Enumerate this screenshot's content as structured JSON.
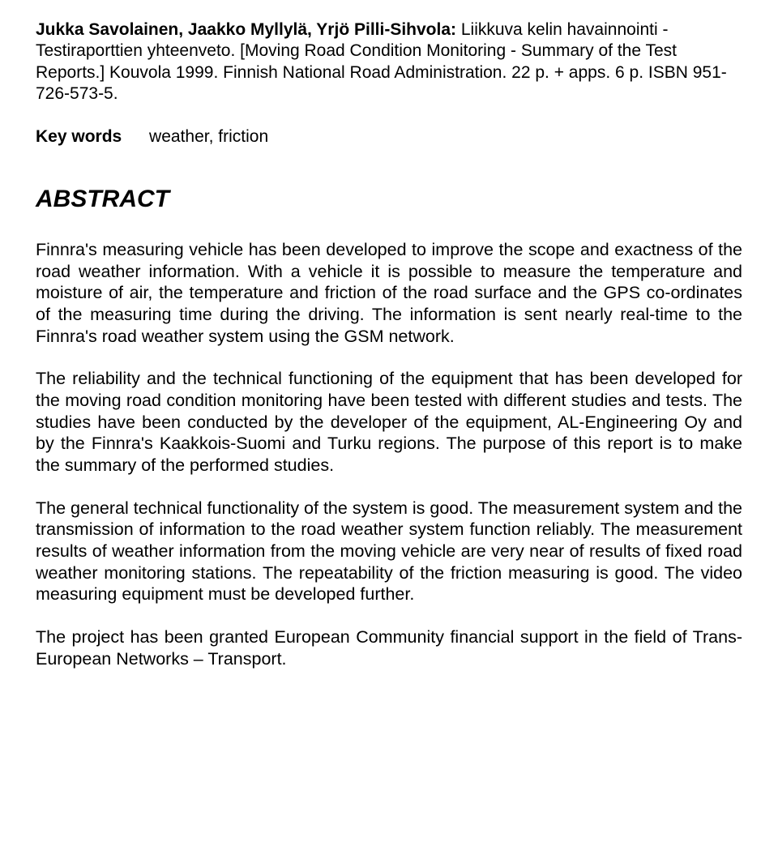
{
  "citation": {
    "authors": "Jukka Savolainen, Jaakko Myllylä, Yrjö Pilli-Sihvola:",
    "rest": " Liikkuva kelin havainnointi - Testiraporttien yhteenveto. [Moving Road Condition Monitoring - Summary of the Test Reports.] Kouvola 1999. Finnish National Road Administration. 22 p. + apps. 6 p. ISBN 951-726-573-5."
  },
  "keywords": {
    "label": "Key words",
    "value": "weather, friction"
  },
  "abstract_title": "ABSTRACT",
  "paragraphs": [
    "Finnra's measuring vehicle has been developed to improve the scope and exactness of the road weather information. With a vehicle it is possible to measure the temperature and moisture of air, the temperature and friction of the road surface and the GPS co-ordinates of the measuring time during the driving. The information is sent nearly real-time to the Finnra's road weather system using the GSM network.",
    "The reliability and the technical functioning of the equipment that has been developed for the moving road condition monitoring have been tested with different studies and tests. The studies have been conducted by the developer of the equipment, AL-Engineering Oy and by the Finnra's Kaakkois-Suomi and Turku regions. The purpose of this report is to make the summary of the performed studies.",
    "The general technical functionality of the system is good. The measurement system and the transmission of information to the road weather system function reliably. The measurement results of weather information from the moving vehicle are very near of results of fixed road weather monitoring stations. The repeatability of the friction measuring is good. The video measuring equipment must be developed further.",
    "The project has been granted European Community financial support in the field of Trans-European Networks – Transport."
  ]
}
